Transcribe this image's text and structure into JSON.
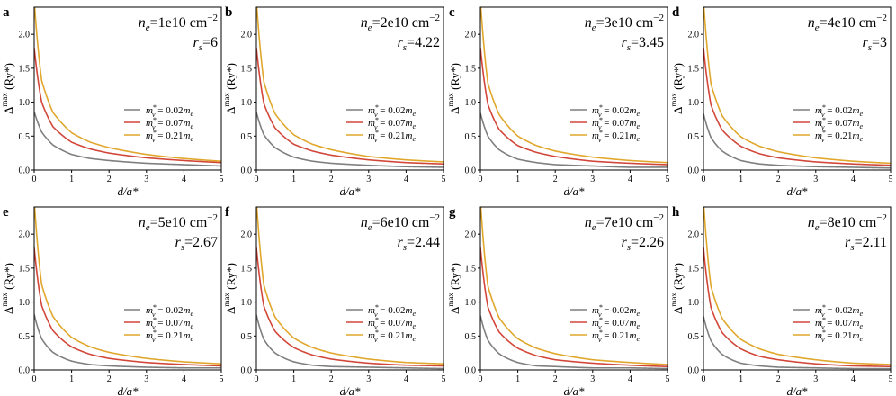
{
  "figure": {
    "background": "#ffffff"
  },
  "colors": {
    "series": [
      "#7f7f7f",
      "#d2473a",
      "#e0a72c"
    ],
    "axis": "#000000"
  },
  "axis_text": {
    "xlabel": "d/a*",
    "ylabel": "Δmax (Ry*)",
    "ylabel_parts": {
      "base": "Δ",
      "sup": "max",
      "unit": " (Ry*)"
    },
    "xticks": [
      "0",
      "1",
      "2",
      "3",
      "4",
      "5"
    ],
    "yticks": [
      "0.0",
      "0.5",
      "1.0",
      "1.5",
      "2.0"
    ]
  },
  "legend": {
    "placement": "center-right",
    "entries": [
      {
        "label": "m_v* = 0.02m_e",
        "m": "m",
        "sub": "v",
        "sup": "*",
        "rhs": " = 0.02",
        "unit_sub": "e"
      },
      {
        "label": "m_v* = 0.07m_e",
        "m": "m",
        "sub": "v",
        "sup": "*",
        "rhs": " = 0.07",
        "unit_sub": "e"
      },
      {
        "label": "m_v* = 0.21m_e",
        "m": "m",
        "sub": "v",
        "sup": "*",
        "rhs": " = 0.21",
        "unit_sub": "e"
      }
    ]
  },
  "chart_data": [
    {
      "type": "line",
      "panel": "a",
      "ne": "1e10",
      "ne_unit": "cm",
      "ne_exp": "−2",
      "rs": "6",
      "xlim": [
        0,
        5
      ],
      "ylim": [
        0,
        2.4
      ],
      "grid": false,
      "x": [
        0.001,
        0.2,
        0.5,
        1,
        1.5,
        2,
        3,
        4,
        5
      ],
      "series": [
        {
          "name": "m_v* = 0.02m_e",
          "values": [
            0.86,
            0.56,
            0.37,
            0.23,
            0.17,
            0.14,
            0.1,
            0.08,
            0.06
          ]
        },
        {
          "name": "m_v* = 0.07m_e",
          "values": [
            1.8,
            1.0,
            0.64,
            0.41,
            0.31,
            0.25,
            0.18,
            0.14,
            0.11
          ]
        },
        {
          "name": "m_v* = 0.21m_e",
          "values": [
            2.5,
            1.32,
            0.85,
            0.55,
            0.41,
            0.33,
            0.23,
            0.17,
            0.13
          ]
        }
      ]
    },
    {
      "type": "line",
      "panel": "b",
      "ne": "2e10",
      "ne_unit": "cm",
      "ne_exp": "−2",
      "rs": "4.22",
      "xlim": [
        0,
        5
      ],
      "ylim": [
        0,
        2.4
      ],
      "grid": false,
      "x": [
        0.001,
        0.2,
        0.5,
        1,
        1.5,
        2,
        3,
        4,
        5
      ],
      "series": [
        {
          "name": "m_v* = 0.02m_e",
          "values": [
            0.85,
            0.52,
            0.33,
            0.19,
            0.13,
            0.1,
            0.07,
            0.05,
            0.04
          ]
        },
        {
          "name": "m_v* = 0.07m_e",
          "values": [
            1.8,
            0.98,
            0.62,
            0.38,
            0.28,
            0.22,
            0.15,
            0.11,
            0.09
          ]
        },
        {
          "name": "m_v* = 0.21m_e",
          "values": [
            2.5,
            1.3,
            0.83,
            0.52,
            0.38,
            0.3,
            0.2,
            0.15,
            0.12
          ]
        }
      ]
    },
    {
      "type": "line",
      "panel": "c",
      "ne": "3e10",
      "ne_unit": "cm",
      "ne_exp": "−2",
      "rs": "3.45",
      "xlim": [
        0,
        5
      ],
      "ylim": [
        0,
        2.4
      ],
      "grid": false,
      "x": [
        0.001,
        0.2,
        0.5,
        1,
        1.5,
        2,
        3,
        4,
        5
      ],
      "series": [
        {
          "name": "m_v* = 0.02m_e",
          "values": [
            0.84,
            0.5,
            0.3,
            0.16,
            0.11,
            0.08,
            0.06,
            0.04,
            0.04
          ]
        },
        {
          "name": "m_v* = 0.07m_e",
          "values": [
            1.8,
            0.97,
            0.6,
            0.36,
            0.26,
            0.2,
            0.13,
            0.1,
            0.08
          ]
        },
        {
          "name": "m_v* = 0.21m_e",
          "values": [
            2.5,
            1.28,
            0.82,
            0.5,
            0.36,
            0.28,
            0.19,
            0.14,
            0.11
          ]
        }
      ]
    },
    {
      "type": "line",
      "panel": "d",
      "ne": "4e10",
      "ne_unit": "cm",
      "ne_exp": "−2",
      "rs": "3",
      "xlim": [
        0,
        5
      ],
      "ylim": [
        0,
        2.4
      ],
      "grid": false,
      "x": [
        0.001,
        0.2,
        0.5,
        1,
        1.5,
        2,
        3,
        4,
        5
      ],
      "series": [
        {
          "name": "m_v* = 0.02m_e",
          "values": [
            0.83,
            0.48,
            0.28,
            0.14,
            0.09,
            0.07,
            0.05,
            0.04,
            0.03
          ]
        },
        {
          "name": "m_v* = 0.07m_e",
          "values": [
            1.8,
            0.96,
            0.59,
            0.35,
            0.24,
            0.18,
            0.12,
            0.09,
            0.07
          ]
        },
        {
          "name": "m_v* = 0.21m_e",
          "values": [
            2.5,
            1.27,
            0.8,
            0.49,
            0.35,
            0.27,
            0.18,
            0.13,
            0.1
          ]
        }
      ]
    },
    {
      "type": "line",
      "panel": "e",
      "ne": "5e10",
      "ne_unit": "cm",
      "ne_exp": "−2",
      "rs": "2.67",
      "xlim": [
        0,
        5
      ],
      "ylim": [
        0,
        2.4
      ],
      "grid": false,
      "x": [
        0.001,
        0.2,
        0.5,
        1,
        1.5,
        2,
        3,
        4,
        5
      ],
      "series": [
        {
          "name": "m_v* = 0.02m_e",
          "values": [
            0.82,
            0.46,
            0.26,
            0.13,
            0.08,
            0.06,
            0.04,
            0.03,
            0.03
          ]
        },
        {
          "name": "m_v* = 0.07m_e",
          "values": [
            1.8,
            0.95,
            0.58,
            0.34,
            0.23,
            0.17,
            0.11,
            0.08,
            0.06
          ]
        },
        {
          "name": "m_v* = 0.21m_e",
          "values": [
            2.5,
            1.26,
            0.79,
            0.48,
            0.34,
            0.26,
            0.17,
            0.12,
            0.09
          ]
        }
      ]
    },
    {
      "type": "line",
      "panel": "f",
      "ne": "6e10",
      "ne_unit": "cm",
      "ne_exp": "−2",
      "rs": "2.44",
      "xlim": [
        0,
        5
      ],
      "ylim": [
        0,
        2.4
      ],
      "grid": false,
      "x": [
        0.001,
        0.2,
        0.5,
        1,
        1.5,
        2,
        3,
        4,
        5
      ],
      "series": [
        {
          "name": "m_v* = 0.02m_e",
          "values": [
            0.81,
            0.45,
            0.25,
            0.12,
            0.07,
            0.05,
            0.04,
            0.03,
            0.02
          ]
        },
        {
          "name": "m_v* = 0.07m_e",
          "values": [
            1.8,
            0.94,
            0.57,
            0.33,
            0.22,
            0.16,
            0.1,
            0.07,
            0.06
          ]
        },
        {
          "name": "m_v* = 0.21m_e",
          "values": [
            2.5,
            1.25,
            0.78,
            0.47,
            0.33,
            0.25,
            0.16,
            0.11,
            0.09
          ]
        }
      ]
    },
    {
      "type": "line",
      "panel": "g",
      "ne": "7e10",
      "ne_unit": "cm",
      "ne_exp": "−2",
      "rs": "2.26",
      "xlim": [
        0,
        5
      ],
      "ylim": [
        0,
        2.4
      ],
      "grid": false,
      "x": [
        0.001,
        0.2,
        0.5,
        1,
        1.5,
        2,
        3,
        4,
        5
      ],
      "series": [
        {
          "name": "m_v* = 0.02m_e",
          "values": [
            0.8,
            0.44,
            0.24,
            0.11,
            0.06,
            0.05,
            0.03,
            0.03,
            0.02
          ]
        },
        {
          "name": "m_v* = 0.07m_e",
          "values": [
            1.8,
            0.93,
            0.56,
            0.32,
            0.21,
            0.15,
            0.1,
            0.07,
            0.05
          ]
        },
        {
          "name": "m_v* = 0.21m_e",
          "values": [
            2.5,
            1.24,
            0.77,
            0.46,
            0.32,
            0.24,
            0.15,
            0.11,
            0.08
          ]
        }
      ]
    },
    {
      "type": "line",
      "panel": "h",
      "ne": "8e10",
      "ne_unit": "cm",
      "ne_exp": "−2",
      "rs": "2.11",
      "xlim": [
        0,
        5
      ],
      "ylim": [
        0,
        2.4
      ],
      "grid": false,
      "x": [
        0.001,
        0.2,
        0.5,
        1,
        1.5,
        2,
        3,
        4,
        5
      ],
      "series": [
        {
          "name": "m_v* = 0.02m_e",
          "values": [
            0.79,
            0.43,
            0.23,
            0.1,
            0.06,
            0.04,
            0.03,
            0.02,
            0.02
          ]
        },
        {
          "name": "m_v* = 0.07m_e",
          "values": [
            1.8,
            0.92,
            0.55,
            0.31,
            0.2,
            0.15,
            0.09,
            0.06,
            0.05
          ]
        },
        {
          "name": "m_v* = 0.21m_e",
          "values": [
            2.5,
            1.23,
            0.76,
            0.45,
            0.31,
            0.23,
            0.15,
            0.1,
            0.08
          ]
        }
      ]
    }
  ]
}
